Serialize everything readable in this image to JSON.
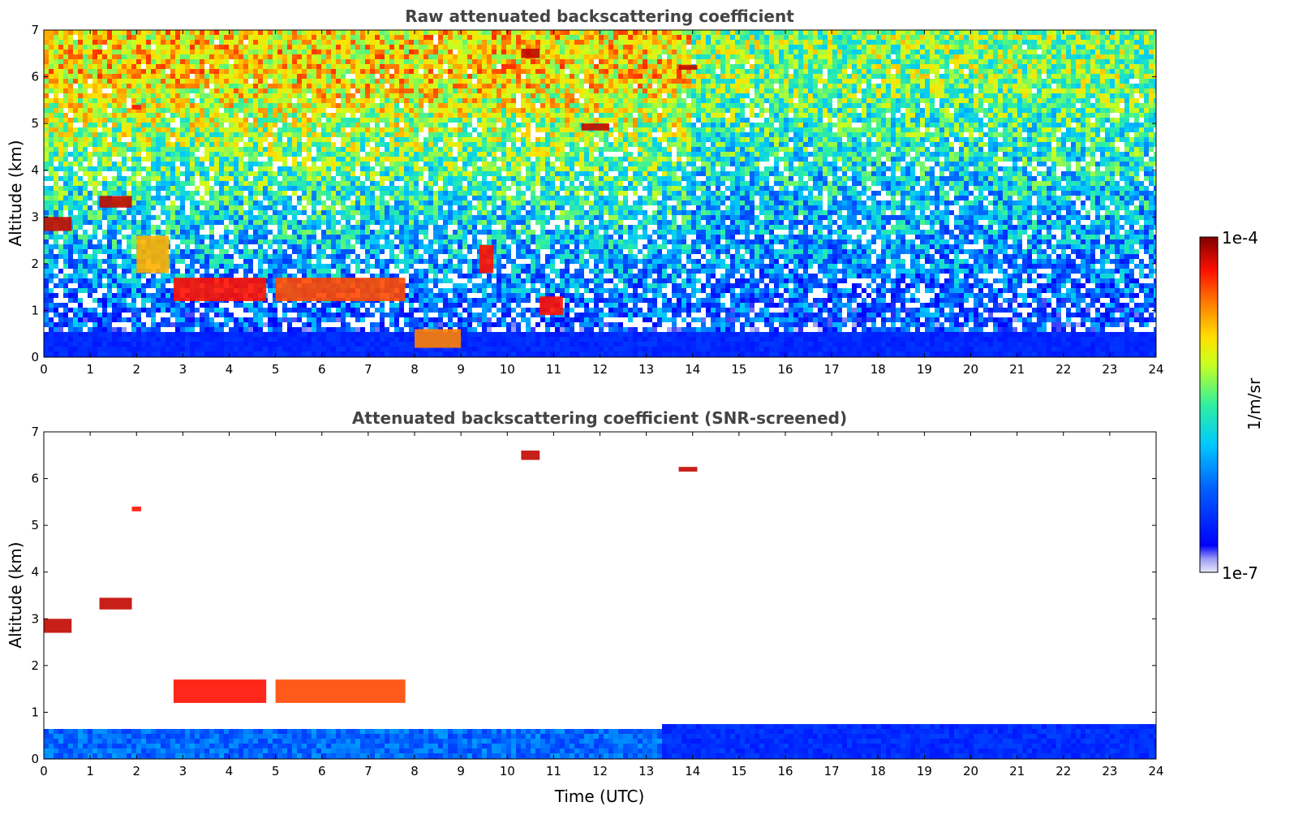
{
  "chart_data": [
    {
      "type": "heatmap",
      "title": "Raw attenuated backscattering coefficient",
      "xlabel": "",
      "ylabel": "Altitude (km)",
      "xlim": [
        0,
        24
      ],
      "ylim": [
        0,
        7
      ],
      "x_ticks": [
        "0",
        "1",
        "2",
        "3",
        "4",
        "5",
        "6",
        "7",
        "8",
        "9",
        "10",
        "11",
        "12",
        "13",
        "14",
        "15",
        "16",
        "17",
        "18",
        "19",
        "20",
        "21",
        "22",
        "23",
        "24"
      ],
      "y_ticks": [
        "0",
        "1",
        "2",
        "3",
        "4",
        "5",
        "6",
        "7"
      ],
      "screened": false,
      "features": [
        {
          "x": [
            0.0,
            0.6
          ],
          "y": [
            2.7,
            3.0
          ],
          "level": 0.95
        },
        {
          "x": [
            1.2,
            1.9
          ],
          "y": [
            3.2,
            3.45
          ],
          "level": 0.95
        },
        {
          "x": [
            1.9,
            2.1
          ],
          "y": [
            5.3,
            5.4
          ],
          "level": 0.9
        },
        {
          "x": [
            2.0,
            2.7
          ],
          "y": [
            1.8,
            2.6
          ],
          "level": 0.75
        },
        {
          "x": [
            2.8,
            4.8
          ],
          "y": [
            1.2,
            1.7
          ],
          "level": 0.9
        },
        {
          "x": [
            5.0,
            7.8
          ],
          "y": [
            1.2,
            1.7
          ],
          "level": 0.85
        },
        {
          "x": [
            8.0,
            9.0
          ],
          "y": [
            0.2,
            0.6
          ],
          "level": 0.8
        },
        {
          "x": [
            9.4,
            9.7
          ],
          "y": [
            1.8,
            2.4
          ],
          "level": 0.9
        },
        {
          "x": [
            10.3,
            10.7
          ],
          "y": [
            6.4,
            6.6
          ],
          "level": 0.95
        },
        {
          "x": [
            10.7,
            11.2
          ],
          "y": [
            0.9,
            1.3
          ],
          "level": 0.9
        },
        {
          "x": [
            11.6,
            12.2
          ],
          "y": [
            4.85,
            5.0
          ],
          "level": 0.95
        },
        {
          "x": [
            13.7,
            14.1
          ],
          "y": [
            6.15,
            6.25
          ],
          "level": 0.95
        }
      ]
    },
    {
      "type": "heatmap",
      "title": "Attenuated backscattering coefficient (SNR-screened)",
      "xlabel": "Time (UTC)",
      "ylabel": "Altitude (km)",
      "xlim": [
        0,
        24
      ],
      "ylim": [
        0,
        7
      ],
      "x_ticks": [
        "0",
        "1",
        "2",
        "3",
        "4",
        "5",
        "6",
        "7",
        "8",
        "9",
        "10",
        "11",
        "12",
        "13",
        "14",
        "15",
        "16",
        "17",
        "18",
        "19",
        "20",
        "21",
        "22",
        "23",
        "24"
      ],
      "y_ticks": [
        "0",
        "1",
        "2",
        "3",
        "4",
        "5",
        "6",
        "7"
      ],
      "screened": true,
      "features": [
        {
          "x": [
            0.0,
            0.6
          ],
          "y": [
            2.7,
            3.0
          ],
          "level": 0.95
        },
        {
          "x": [
            1.2,
            1.9
          ],
          "y": [
            3.2,
            3.45
          ],
          "level": 0.95
        },
        {
          "x": [
            1.9,
            2.1
          ],
          "y": [
            5.3,
            5.4
          ],
          "level": 0.9
        },
        {
          "x": [
            2.8,
            4.8
          ],
          "y": [
            1.2,
            1.7
          ],
          "level": 0.9
        },
        {
          "x": [
            5.0,
            7.8
          ],
          "y": [
            1.2,
            1.7
          ],
          "level": 0.85
        },
        {
          "x": [
            10.3,
            10.7
          ],
          "y": [
            6.4,
            6.6
          ],
          "level": 0.95
        },
        {
          "x": [
            13.7,
            14.1
          ],
          "y": [
            6.15,
            6.25
          ],
          "level": 0.95
        }
      ]
    }
  ],
  "colorbar": {
    "label": "1/m/sr",
    "min_label": "1e-7",
    "max_label": "1e-4",
    "scale": "log",
    "colormap": [
      "#e6e6fa",
      "#0000ff",
      "#00bfff",
      "#00ffbf",
      "#bfff00",
      "#ffff00",
      "#ff8000",
      "#ff0000",
      "#800000"
    ]
  }
}
